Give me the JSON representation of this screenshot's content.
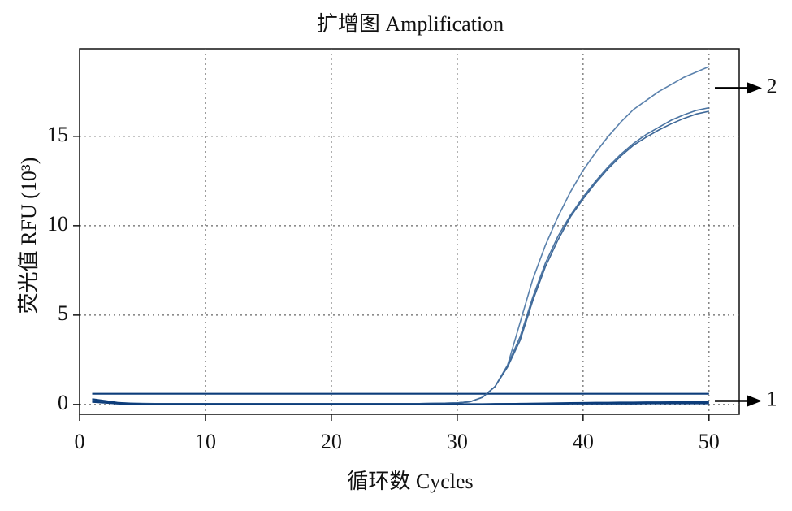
{
  "chart_data": {
    "type": "line",
    "title": "扩增图 Amplification",
    "x_label": "循环数 Cycles",
    "y_label": "荧光值 RFU (10³)",
    "x": [
      1,
      2,
      3,
      4,
      5,
      6,
      7,
      8,
      9,
      10,
      11,
      12,
      13,
      14,
      15,
      16,
      17,
      18,
      19,
      20,
      21,
      22,
      23,
      24,
      25,
      26,
      27,
      28,
      29,
      30,
      31,
      32,
      33,
      34,
      35,
      36,
      37,
      38,
      39,
      40,
      41,
      42,
      43,
      44,
      45,
      46,
      47,
      48,
      49,
      50
    ],
    "series": [
      {
        "color": "#5b82ad",
        "values": [
          0.25,
          0.15,
          0.1,
          0.08,
          0.06,
          0.05,
          0.05,
          0.05,
          0.05,
          0.05,
          0.05,
          0.05,
          0.05,
          0.05,
          0.05,
          0.05,
          0.05,
          0.05,
          0.05,
          0.05,
          0.05,
          0.05,
          0.05,
          0.05,
          0.05,
          0.05,
          0.05,
          0.06,
          0.07,
          0.09,
          0.15,
          0.4,
          1.0,
          2.2,
          4.6,
          7.0,
          8.9,
          10.5,
          11.9,
          13.1,
          14.1,
          15.0,
          15.8,
          16.5,
          17.0,
          17.5,
          17.9,
          18.3,
          18.6,
          18.9
        ]
      },
      {
        "color": "#4a74a3",
        "values": [
          0.2,
          0.12,
          0.08,
          0.06,
          0.05,
          0.05,
          0.05,
          0.05,
          0.05,
          0.05,
          0.05,
          0.05,
          0.05,
          0.05,
          0.05,
          0.05,
          0.05,
          0.05,
          0.05,
          0.05,
          0.05,
          0.05,
          0.05,
          0.05,
          0.05,
          0.05,
          0.05,
          0.06,
          0.07,
          0.09,
          0.15,
          0.4,
          1.0,
          2.2,
          3.8,
          6.0,
          7.9,
          9.4,
          10.6,
          11.6,
          12.5,
          13.3,
          14.0,
          14.6,
          15.1,
          15.5,
          15.9,
          16.2,
          16.45,
          16.6
        ]
      },
      {
        "color": "#3e6898",
        "values": [
          0.18,
          0.1,
          0.07,
          0.05,
          0.05,
          0.05,
          0.05,
          0.05,
          0.05,
          0.05,
          0.05,
          0.05,
          0.05,
          0.05,
          0.05,
          0.05,
          0.05,
          0.05,
          0.05,
          0.05,
          0.05,
          0.05,
          0.05,
          0.05,
          0.05,
          0.05,
          0.05,
          0.06,
          0.07,
          0.09,
          0.15,
          0.4,
          1.0,
          2.1,
          3.6,
          5.8,
          7.7,
          9.2,
          10.5,
          11.5,
          12.4,
          13.2,
          13.9,
          14.5,
          14.95,
          15.35,
          15.7,
          16.0,
          16.25,
          16.4
        ]
      },
      {
        "color": "#0d3d7a",
        "values": [
          0.3,
          0.2,
          0.1,
          0.05,
          0.02,
          0,
          0,
          0,
          0,
          0,
          0,
          0,
          0,
          0,
          0,
          0,
          0,
          0,
          0,
          0,
          0,
          0,
          0,
          0,
          0,
          0,
          0,
          0,
          0,
          0,
          0,
          0,
          0.02,
          0.03,
          0.04,
          0.05,
          0.06,
          0.07,
          0.08,
          0.09,
          0.1,
          0.1,
          0.11,
          0.11,
          0.12,
          0.12,
          0.13,
          0.13,
          0.14,
          0.14
        ]
      },
      {
        "color": "#0d3d7a",
        "values": [
          0.15,
          0.1,
          0.05,
          0.03,
          0.02,
          0.02,
          0.02,
          0.02,
          0.02,
          0.02,
          0.02,
          0.02,
          0.02,
          0.02,
          0.02,
          0.02,
          0.02,
          0.02,
          0.02,
          0.02,
          0.02,
          0.02,
          0.02,
          0.02,
          0.02,
          0.02,
          0.02,
          0.02,
          0.02,
          0.02,
          0.02,
          0.02,
          0.03,
          0.03,
          0.03,
          0.04,
          0.04,
          0.04,
          0.05,
          0.05,
          0.05,
          0.05,
          0.05,
          0.05,
          0.06,
          0.06,
          0.06,
          0.06,
          0.06,
          0.06
        ]
      }
    ],
    "threshold": 0.6,
    "threshold_color": "#0d3d7a",
    "annotations": [
      {
        "text": "2",
        "y": 17.7
      },
      {
        "text": "1",
        "y": 0.2
      }
    ],
    "xlim": [
      0,
      52.4
    ],
    "ylim": [
      -0.55,
      19.9
    ],
    "xticks": [
      0,
      10,
      20,
      30,
      40,
      50
    ],
    "yticks": [
      0,
      5,
      10,
      15
    ],
    "grid": true
  }
}
